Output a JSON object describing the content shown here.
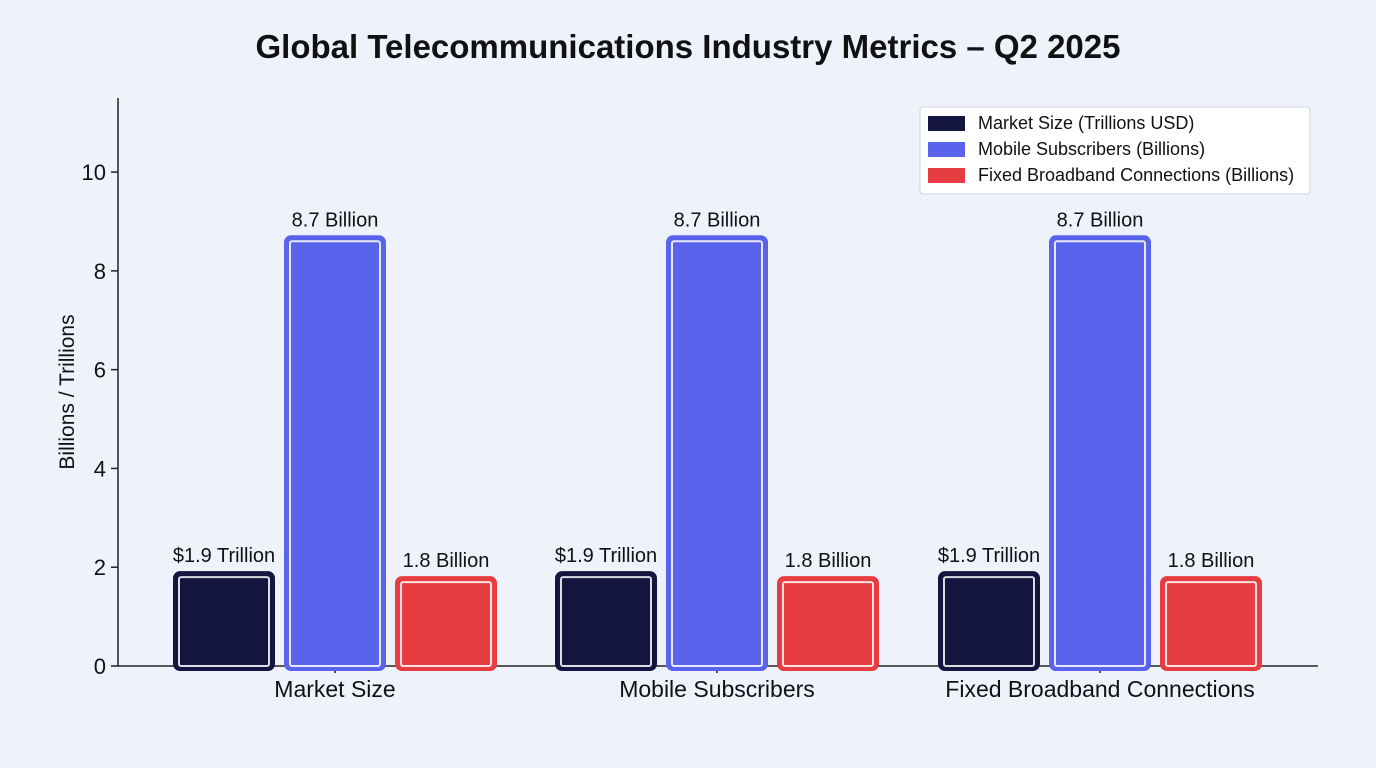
{
  "chart_data": {
    "type": "bar",
    "title": "Global Telecommunications Industry Metrics – Q2 2025",
    "xlabel": "",
    "ylabel": "Billions / Trillions",
    "ylim": [
      0,
      11.5
    ],
    "yticks": [
      0,
      2,
      4,
      6,
      8,
      10
    ],
    "categories": [
      "Market Size",
      "Mobile Subscribers",
      "Fixed Broadband Connections"
    ],
    "series": [
      {
        "name": "Market Size (Trillions USD)",
        "color": "#15163f",
        "values": [
          1.9,
          1.9,
          1.9
        ],
        "labels": [
          "$1.9 Trillion",
          "$1.9 Trillion",
          "$1.9 Trillion"
        ]
      },
      {
        "name": "Mobile Subscribers (Billions)",
        "color": "#5a63ec",
        "values": [
          8.7,
          8.7,
          8.7
        ],
        "labels": [
          "8.7 Billion",
          "8.7 Billion",
          "8.7 Billion"
        ]
      },
      {
        "name": "Fixed Broadband Connections (Billions)",
        "color": "#e63c42",
        "values": [
          1.8,
          1.8,
          1.8
        ],
        "labels": [
          "1.8 Billion",
          "1.8 Billion",
          "1.8 Billion"
        ]
      }
    ],
    "legend": "top-right",
    "grid": false
  }
}
